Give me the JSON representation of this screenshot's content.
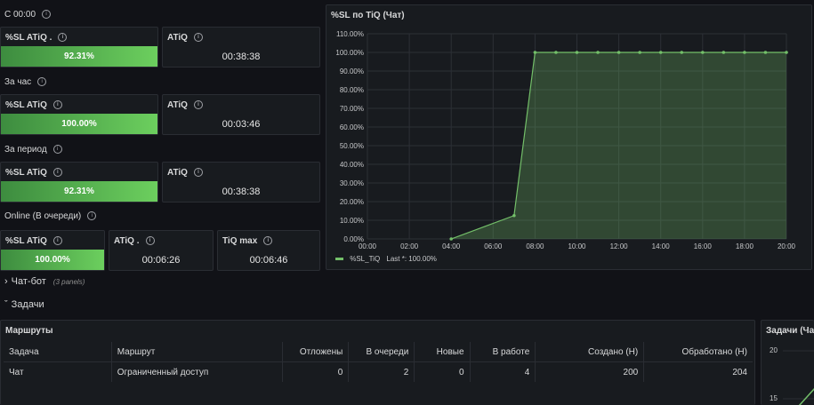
{
  "sections": {
    "since_midnight": "С 00:00",
    "per_hour": "За час",
    "per_period": "За период",
    "online": "Online (В очереди)"
  },
  "stats": {
    "r1": {
      "sl_title": "%SL ATiQ .",
      "sl_value": "92.31%",
      "sl_fill": 1.0,
      "atiq_title": "ATiQ",
      "atiq_value": "00:38:38"
    },
    "r2": {
      "sl_title": "%SL ATiQ",
      "sl_value": "100.00%",
      "sl_fill": 1.0,
      "atiq_title": "ATiQ",
      "atiq_value": "00:03:46"
    },
    "r3": {
      "sl_title": "%SL ATiQ",
      "sl_value": "92.31%",
      "sl_fill": 1.0,
      "atiq_title": "ATiQ",
      "atiq_value": "00:38:38"
    },
    "r4": {
      "sl_title": "%SL ATiQ",
      "sl_value": "100.00%",
      "atiq_title": "ATiQ .",
      "atiq_value": "00:06:26",
      "tiqmax_title": "TiQ max",
      "tiqmax_value": "00:06:46"
    }
  },
  "graph": {
    "title": "%SL по TiQ (Чат)",
    "legend_name": "%SL_TiQ",
    "legend_last": "Last *: 100.00%",
    "series_color": "#73bf69"
  },
  "chart_data": {
    "type": "area",
    "title": "%SL по TiQ (Чат)",
    "x_ticks": [
      "00:00",
      "02:00",
      "04:00",
      "06:00",
      "08:00",
      "10:00",
      "12:00",
      "14:00",
      "16:00",
      "18:00",
      "20:00"
    ],
    "y_ticks": [
      "0.00%",
      "10.00%",
      "20.00%",
      "30.00%",
      "40.00%",
      "50.00%",
      "60.00%",
      "70.00%",
      "80.00%",
      "90.00%",
      "100.00%",
      "110.00%"
    ],
    "xlim": [
      0,
      20
    ],
    "ylim": [
      0,
      110
    ],
    "series": [
      {
        "name": "%SL_TiQ",
        "x": [
          4,
          7,
          8,
          9,
          10,
          11,
          12,
          13,
          14,
          15,
          16,
          17,
          18,
          19,
          20
        ],
        "y": [
          0,
          12.5,
          100,
          100,
          100,
          100,
          100,
          100,
          100,
          100,
          100,
          100,
          100,
          100,
          100
        ]
      }
    ]
  },
  "rows": {
    "chatbot": {
      "label": "Чат-бот",
      "note": "(3 panels)"
    },
    "tasks": {
      "label": "Задачи"
    }
  },
  "routes": {
    "title": "Маршруты",
    "columns": [
      "Задача",
      "Маршрут",
      "Отложены",
      "В очереди",
      "Новые",
      "В работе",
      "Создано (Н)",
      "Обработано (Н)"
    ],
    "rows": [
      [
        "Чат",
        "Ограниченный доступ",
        "0",
        "2",
        "0",
        "4",
        "200",
        "204"
      ]
    ]
  },
  "tasks_panel": {
    "title": "Задачи (Чат",
    "y_ticks": [
      "20",
      "15"
    ]
  }
}
